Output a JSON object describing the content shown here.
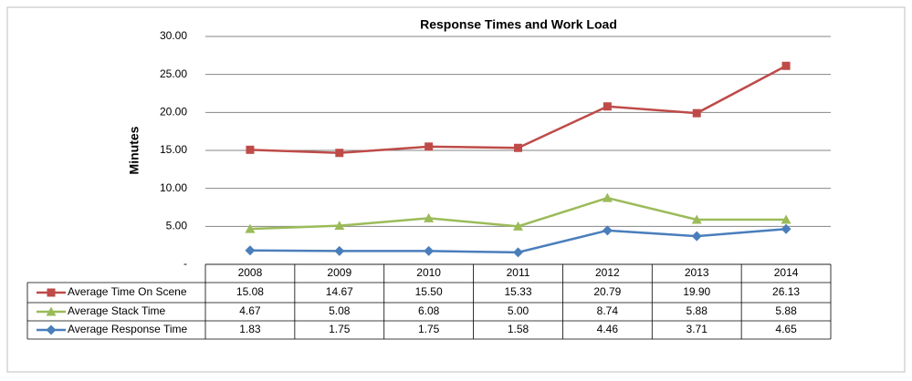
{
  "chart_data": {
    "type": "line",
    "title": "Response Times and Work Load",
    "y_label": "Minutes",
    "categories": [
      "2008",
      "2009",
      "2010",
      "2011",
      "2012",
      "2013",
      "2014"
    ],
    "series": [
      {
        "name": "Average Time On Scene",
        "color": "#be4b48",
        "marker": "square",
        "values": [
          15.08,
          14.67,
          15.5,
          15.33,
          20.79,
          19.9,
          26.13
        ],
        "value_labels": [
          "15.08",
          "14.67",
          "15.50",
          "15.33",
          "20.79",
          "19.90",
          "26.13"
        ]
      },
      {
        "name": "Average Stack Time",
        "color": "#9bbb59",
        "marker": "triangle",
        "values": [
          4.67,
          5.08,
          6.08,
          5,
          8.74,
          5.88,
          5.88
        ],
        "value_labels": [
          "4.67",
          "5.08",
          "6.08",
          "5.00",
          "8.74",
          "5.88",
          "5.88"
        ]
      },
      {
        "name": "Average Response Time",
        "color": "#4a7ebb",
        "marker": "diamond",
        "values": [
          1.83,
          1.75,
          1.75,
          1.58,
          4.46,
          3.71,
          4.65
        ],
        "value_labels": [
          "1.83",
          "1.75",
          "1.75",
          "1.58",
          "4.46",
          "3.71",
          "4.65"
        ]
      }
    ],
    "ylim": [
      0,
      30
    ],
    "yticks": [
      {
        "value": 0,
        "label": "-"
      },
      {
        "value": 5,
        "label": "5.00"
      },
      {
        "value": 10,
        "label": "10.00"
      },
      {
        "value": 15,
        "label": "15.00"
      },
      {
        "value": 20,
        "label": "20.00"
      },
      {
        "value": 25,
        "label": "25.00"
      },
      {
        "value": 30,
        "label": "30.00"
      }
    ],
    "grid": true,
    "legend": "data-table"
  }
}
